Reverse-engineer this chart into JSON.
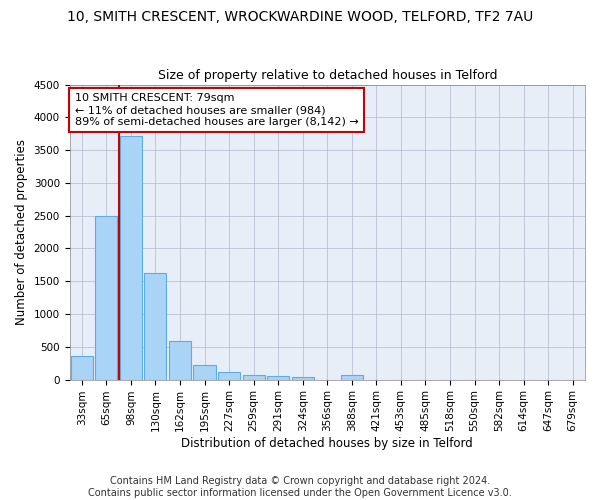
{
  "title": "10, SMITH CRESCENT, WROCKWARDINE WOOD, TELFORD, TF2 7AU",
  "subtitle": "Size of property relative to detached houses in Telford",
  "xlabel": "Distribution of detached houses by size in Telford",
  "ylabel": "Number of detached properties",
  "categories": [
    "33sqm",
    "65sqm",
    "98sqm",
    "130sqm",
    "162sqm",
    "195sqm",
    "227sqm",
    "259sqm",
    "291sqm",
    "324sqm",
    "356sqm",
    "388sqm",
    "421sqm",
    "453sqm",
    "485sqm",
    "518sqm",
    "550sqm",
    "582sqm",
    "614sqm",
    "647sqm",
    "679sqm"
  ],
  "values": [
    360,
    2500,
    3720,
    1630,
    590,
    220,
    110,
    70,
    55,
    40,
    0,
    70,
    0,
    0,
    0,
    0,
    0,
    0,
    0,
    0,
    0
  ],
  "bar_color": "#aad4f5",
  "bar_edge_color": "#5baee3",
  "property_line_color": "#cc0000",
  "annotation_line1": "10 SMITH CRESCENT: 79sqm",
  "annotation_line2": "← 11% of detached houses are smaller (984)",
  "annotation_line3": "89% of semi-detached houses are larger (8,142) →",
  "annotation_box_color": "#cc0000",
  "ylim": [
    0,
    4500
  ],
  "yticks": [
    0,
    500,
    1000,
    1500,
    2000,
    2500,
    3000,
    3500,
    4000,
    4500
  ],
  "footer_line1": "Contains HM Land Registry data © Crown copyright and database right 2024.",
  "footer_line2": "Contains public sector information licensed under the Open Government Licence v3.0.",
  "background_color": "#e8eef8",
  "grid_color": "#b0b8cc",
  "title_fontsize": 10,
  "subtitle_fontsize": 9,
  "axis_label_fontsize": 8.5,
  "tick_fontsize": 7.5,
  "annotation_fontsize": 8,
  "footer_fontsize": 7
}
